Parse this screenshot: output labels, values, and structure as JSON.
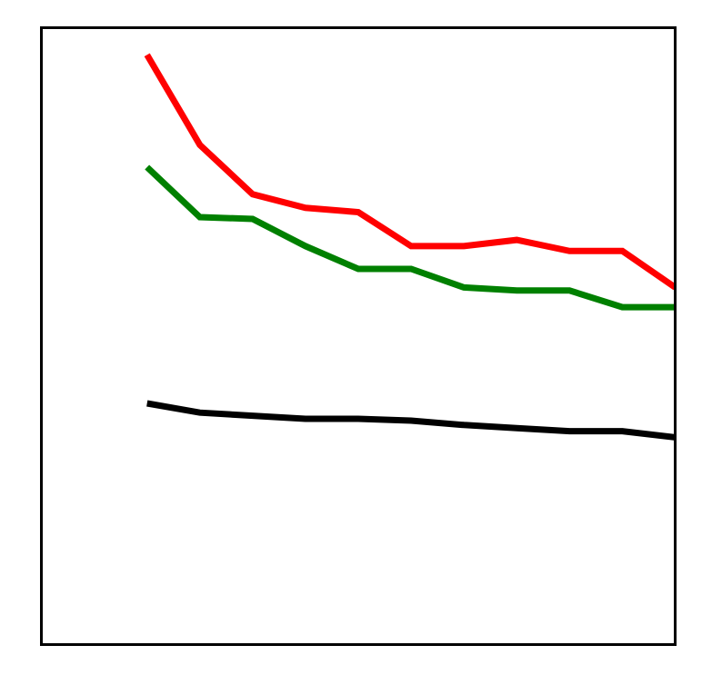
{
  "chart_data": {
    "type": "line",
    "title": "",
    "xlabel": "",
    "ylabel": "",
    "x": [
      1,
      2,
      3,
      4,
      5,
      6,
      7,
      8,
      9,
      10,
      11
    ],
    "xlim": [
      -1,
      11
    ],
    "ylim": [
      0,
      100
    ],
    "grid": false,
    "legend": "none",
    "series": [
      {
        "color": "#ff0000",
        "values": [
          95.6,
          81.0,
          73.0,
          70.8,
          70.1,
          64.6,
          64.6,
          65.6,
          63.8,
          63.8,
          57.9
        ]
      },
      {
        "color": "#008000",
        "values": [
          77.4,
          69.3,
          69.0,
          64.6,
          60.9,
          60.9,
          57.9,
          57.4,
          57.4,
          54.7,
          54.7
        ]
      },
      {
        "color": "#000000",
        "values": [
          39.1,
          37.6,
          37.1,
          36.6,
          36.6,
          36.3,
          35.6,
          35.1,
          34.6,
          34.6,
          33.6
        ]
      }
    ]
  }
}
